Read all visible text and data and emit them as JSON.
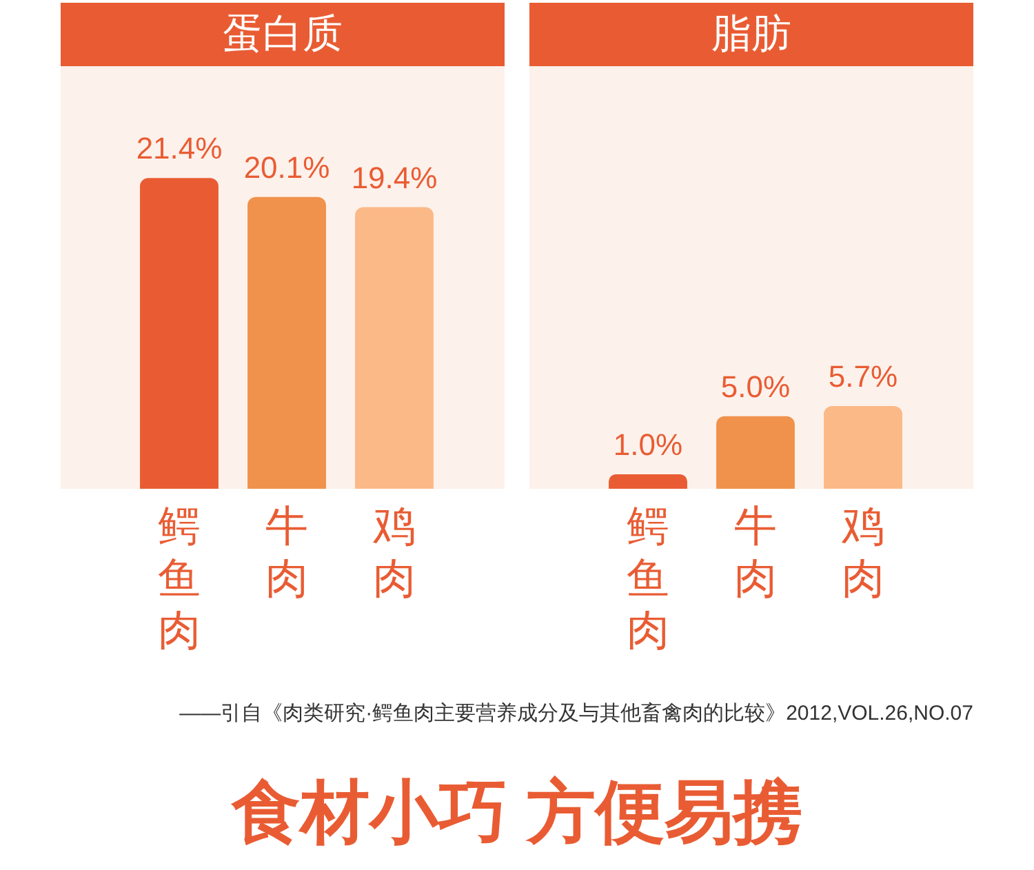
{
  "chart_data": [
    {
      "type": "bar",
      "title": "蛋白质",
      "categories": [
        "鳄鱼肉",
        "牛肉",
        "鸡肉"
      ],
      "values": [
        21.4,
        20.1,
        19.4
      ],
      "colors": [
        "#e95c33",
        "#f0924b",
        "#fbb987"
      ],
      "value_labels": [
        "21.4%",
        "20.1%",
        "19.4%"
      ],
      "tick_labels": "x"
    },
    {
      "type": "bar",
      "title": "脂肪",
      "categories": [
        "鳄鱼肉",
        "牛肉",
        "鸡肉"
      ],
      "values": [
        1.0,
        5.0,
        5.7
      ],
      "colors": [
        "#e95c33",
        "#f0924b",
        "#fbb987"
      ],
      "value_labels": [
        "1.0%",
        "5.0%",
        "5.7%"
      ],
      "tick_labels": "x",
      "annotations": [
        "——引自《肉类研究·鳄鱼肉主要营养成分及与其他畜禽肉的比较》2012,VOL.26,NO.07",
        "食材小巧 方便易携"
      ]
    }
  ]
}
